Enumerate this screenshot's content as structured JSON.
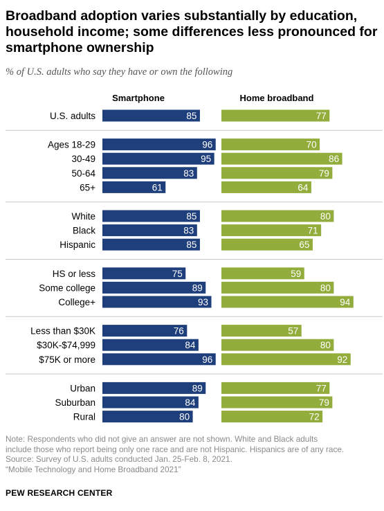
{
  "title": "Broadband adoption varies substantially by education, household income; some differences less pronounced for smartphone ownership",
  "subtitle": "% of U.S. adults who say they have or own the following",
  "chart_data": {
    "type": "bar",
    "orientation": "horizontal",
    "grid": false,
    "series": [
      {
        "name": "Smartphone",
        "color": "#1f3f7c",
        "values": [
          85,
          96,
          95,
          83,
          61,
          85,
          83,
          85,
          75,
          89,
          93,
          76,
          84,
          96,
          89,
          84,
          80
        ]
      },
      {
        "name": "Home broadband",
        "color": "#93ad3c",
        "values": [
          77,
          70,
          86,
          79,
          64,
          80,
          71,
          65,
          59,
          80,
          94,
          57,
          80,
          92,
          77,
          79,
          72
        ]
      }
    ],
    "categories": [
      "U.S. adults",
      "Ages 18-29",
      "30-49",
      "50-64",
      "65+",
      "White",
      "Black",
      "Hispanic",
      "HS or less",
      "Some college",
      "College+",
      "Less than $30K",
      "$30K-$74,999",
      "$75K or more",
      "Urban",
      "Suburban",
      "Rural"
    ],
    "groups": [
      [
        0
      ],
      [
        1,
        2,
        3,
        4
      ],
      [
        5,
        6,
        7
      ],
      [
        8,
        9,
        10
      ],
      [
        11,
        12,
        13
      ],
      [
        14,
        15,
        16
      ]
    ],
    "xlim": [
      0,
      100
    ]
  },
  "notes": [
    "Note: Respondents who did not give an answer are not shown. White and Black adults",
    "include those who report being only one race and are not Hispanic. Hispanics are of any race.",
    "Source: Survey of U.S. adults conducted Jan. 25-Feb. 8, 2021.",
    "“Mobile Technology and Home Broadband 2021”"
  ],
  "source_org": "PEW RESEARCH CENTER"
}
